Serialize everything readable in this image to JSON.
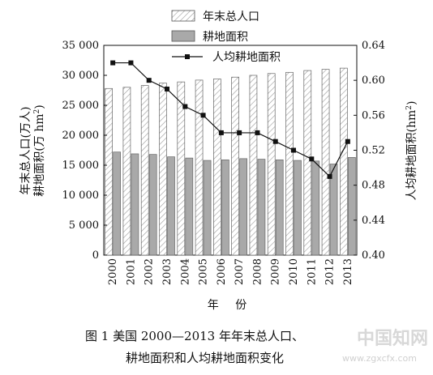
{
  "chart_data": {
    "type": "bar",
    "categories": [
      "2000",
      "2001",
      "2002",
      "2003",
      "2004",
      "2005",
      "2006",
      "2007",
      "2008",
      "2009",
      "2010",
      "2011",
      "2012",
      "2013"
    ],
    "series": [
      {
        "name": "年末总人口",
        "axis": "left",
        "kind": "bar",
        "pattern": "hatched",
        "values": [
          27800,
          28000,
          28300,
          28700,
          28900,
          29200,
          29400,
          29700,
          30000,
          30300,
          30500,
          30800,
          31000,
          31200
        ]
      },
      {
        "name": "耕地面积",
        "axis": "left",
        "kind": "bar",
        "pattern": "solid-gray",
        "values": [
          17200,
          16900,
          16800,
          16400,
          16200,
          15800,
          15900,
          16100,
          16000,
          15900,
          15800,
          15700,
          15200,
          16300
        ]
      },
      {
        "name": "人均耕地面积",
        "axis": "right",
        "kind": "line",
        "marker": "square",
        "values": [
          0.62,
          0.62,
          0.6,
          0.59,
          0.57,
          0.56,
          0.54,
          0.54,
          0.54,
          0.53,
          0.52,
          0.51,
          0.49,
          0.53
        ]
      }
    ],
    "left_axis": {
      "label_line1": "年末总人口(万人)",
      "label_line2": "耕地面积(万 hm",
      "label_sup": "2",
      "label_tail": ")",
      "ylim": [
        0,
        35000
      ],
      "ticks": [
        "0",
        "5 000",
        "10 000",
        "15 000",
        "20 000",
        "25 000",
        "30 000",
        "35 000"
      ]
    },
    "right_axis": {
      "label": "人均耕地面积(hm",
      "label_sup": "2",
      "label_tail": ")",
      "ylim": [
        0.4,
        0.64
      ],
      "ticks": [
        "0.40",
        "0.44",
        "0.48",
        "0.52",
        "0.56",
        "0.60",
        "0.64"
      ]
    },
    "xlabel": "年  份",
    "legend_position": "top-center",
    "grid": false
  },
  "caption": {
    "line1": "图 1    美国 2000—2013 年年末总人口、",
    "line2": "耕地面积和人均耕地面积变化"
  },
  "watermark": {
    "main": "中国知网",
    "url": "www.zgxcfx.com"
  },
  "colors": {
    "bar_gray": "#a9a9a9",
    "hatch": "#9a9a9a",
    "line": "#111111"
  }
}
